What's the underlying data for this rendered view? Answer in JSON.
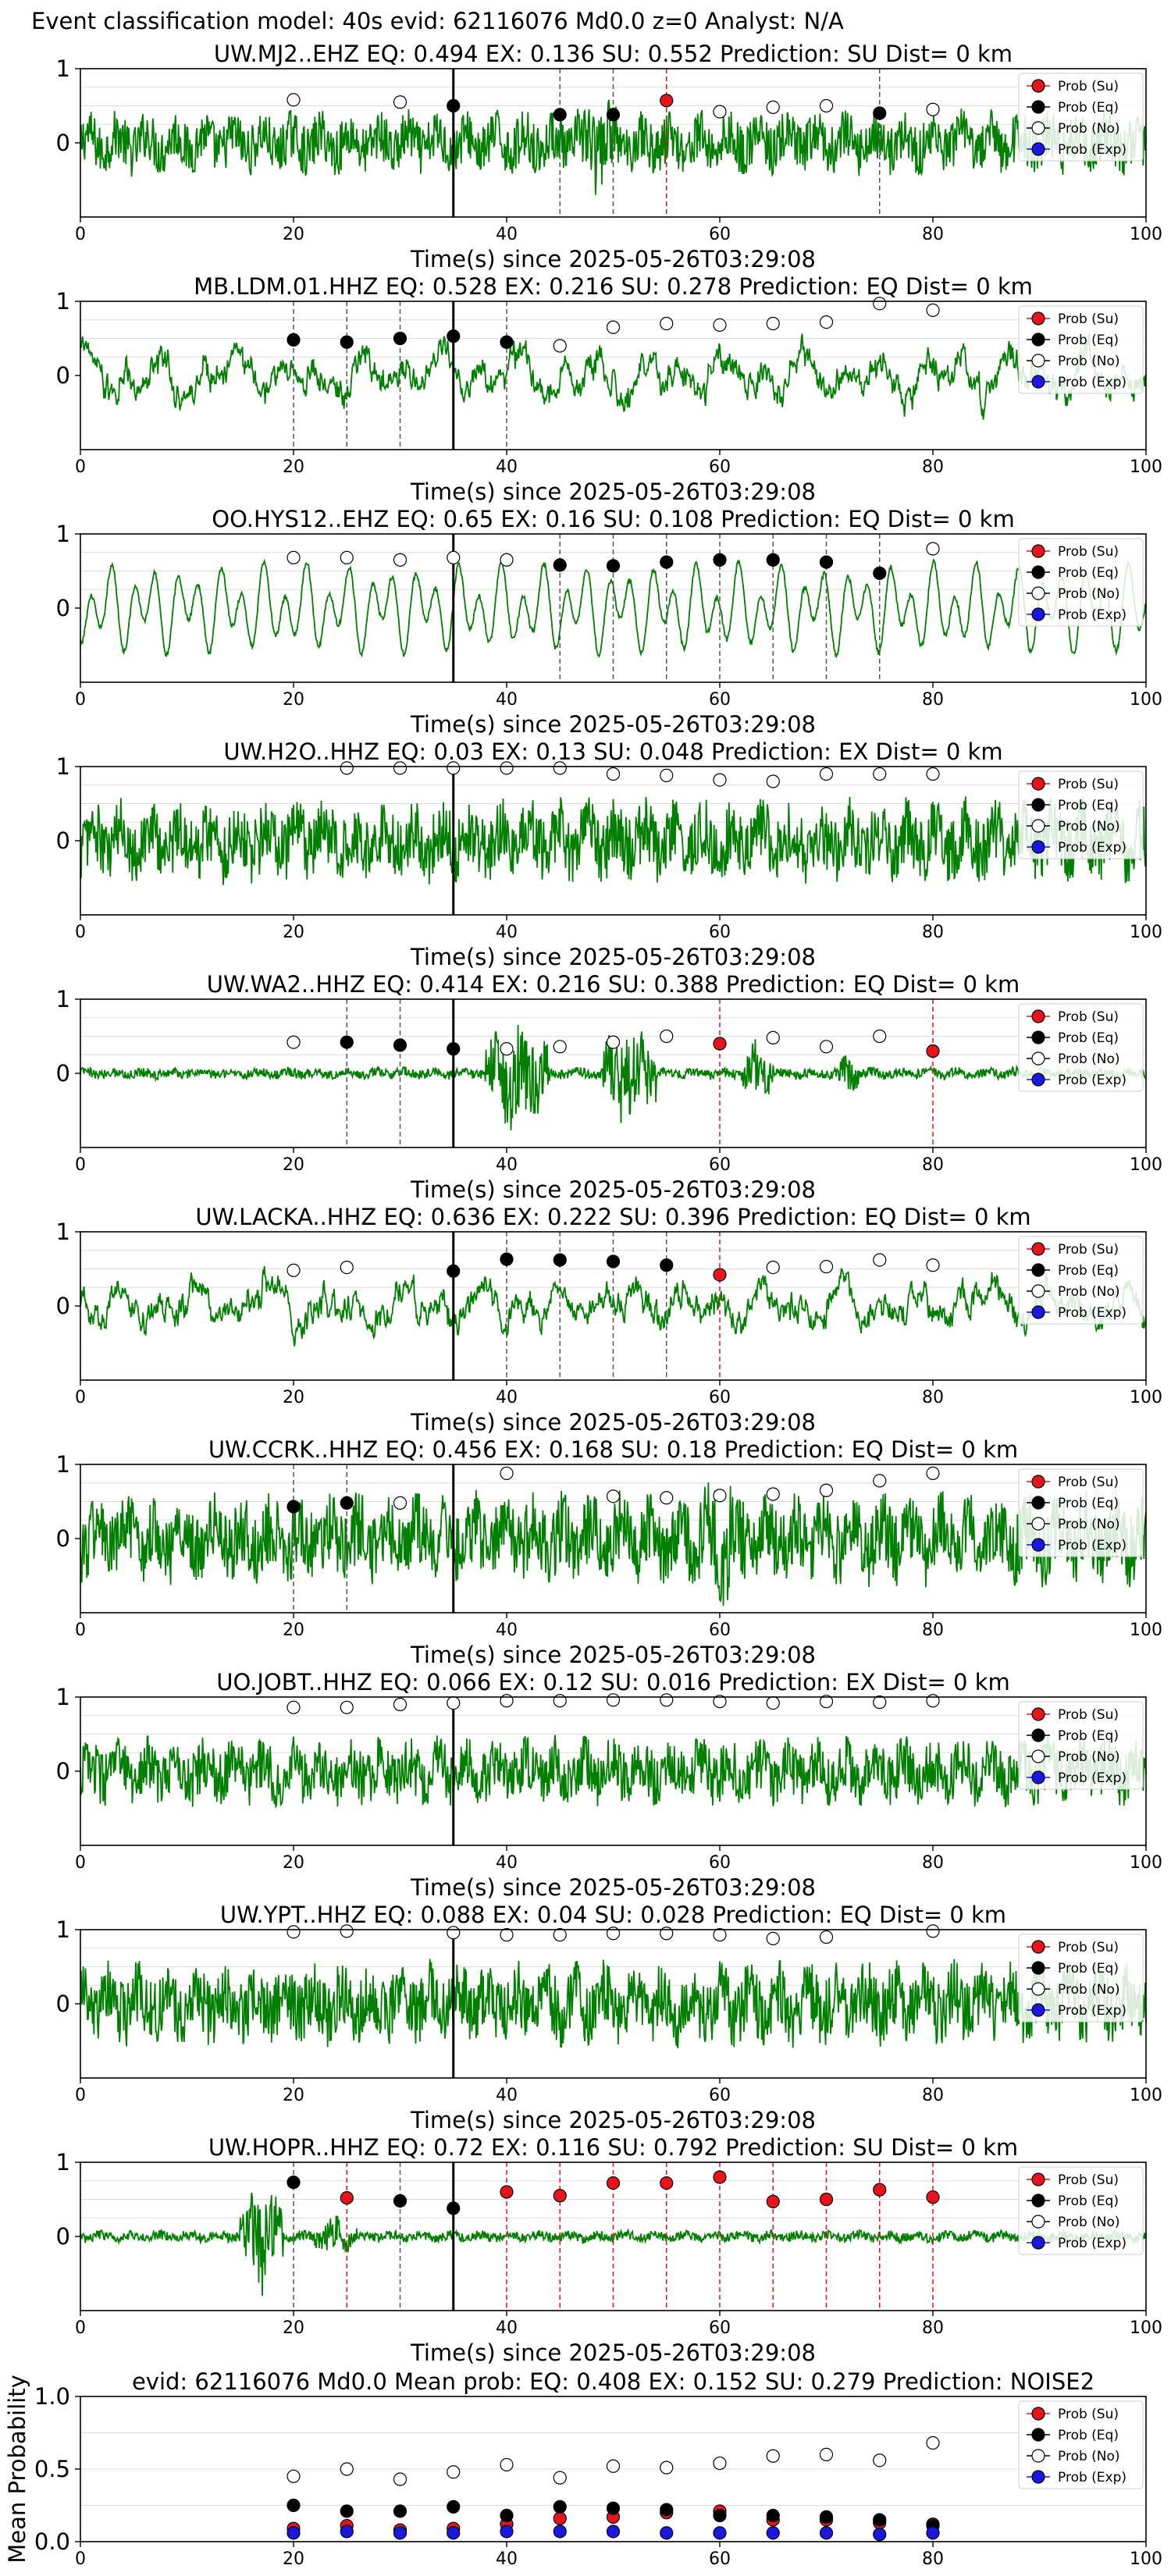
{
  "suptitle": "Event classification model: 40s evid: 62116076 Md0.0 z=0 Analyst: N/A",
  "colors": {
    "waveform": "#007f00",
    "su": "#e8141b",
    "eq": "#000000",
    "no": "#ffffff",
    "exp": "#1a18e0",
    "pick_line": "#000000",
    "grid": "#dddddd"
  },
  "legend": [
    {
      "label": "Prob (Su)",
      "key": "su"
    },
    {
      "label": "Prob (Eq)",
      "key": "eq"
    },
    {
      "label": "Prob (No)",
      "key": "no"
    },
    {
      "label": "Prob (Exp)",
      "key": "exp"
    }
  ],
  "chart_data": [
    {
      "type": "line",
      "title": "UW.MJ2..EHZ   EQ: 0.494  EX: 0.136  SU: 0.552   Prediction: SU    Dist= 0 km",
      "xlabel": "Time(s) since 2025-05-26T03:29:08",
      "xlim": [
        0,
        100
      ],
      "ylim": [
        -1,
        1
      ],
      "xticks": [
        0,
        20,
        40,
        60,
        80,
        100
      ],
      "yticks": [
        0,
        1
      ],
      "pick_time": 35,
      "waveform": {
        "amplitude": 0.42,
        "style": "noisy",
        "bursts": [
          [
            45,
            52,
            0.7
          ]
        ]
      },
      "markers": [
        {
          "x": 20,
          "y": 0.58,
          "cls": "no"
        },
        {
          "x": 30,
          "y": 0.55,
          "cls": "no"
        },
        {
          "x": 35,
          "y": 0.5,
          "cls": "eq"
        },
        {
          "x": 45,
          "y": 0.38,
          "cls": "eq"
        },
        {
          "x": 50,
          "y": 0.38,
          "cls": "eq"
        },
        {
          "x": 55,
          "y": 0.57,
          "cls": "su"
        },
        {
          "x": 60,
          "y": 0.42,
          "cls": "no"
        },
        {
          "x": 65,
          "y": 0.48,
          "cls": "no"
        },
        {
          "x": 70,
          "y": 0.5,
          "cls": "no"
        },
        {
          "x": 75,
          "y": 0.4,
          "cls": "eq"
        },
        {
          "x": 80,
          "y": 0.45,
          "cls": "no"
        }
      ]
    },
    {
      "type": "line",
      "title": "MB.LDM.01.HHZ   EQ: 0.528  EX: 0.216  SU: 0.278   Prediction: EQ    Dist= 0 km",
      "xlabel": "Time(s) since 2025-05-26T03:29:08",
      "xlim": [
        0,
        100
      ],
      "ylim": [
        -1,
        1
      ],
      "xticks": [
        0,
        20,
        40,
        60,
        80,
        100
      ],
      "yticks": [
        0,
        1
      ],
      "pick_time": 35,
      "waveform": {
        "amplitude": 0.6,
        "style": "lowfreq",
        "bursts": []
      },
      "markers": [
        {
          "x": 20,
          "y": 0.48,
          "cls": "eq"
        },
        {
          "x": 25,
          "y": 0.45,
          "cls": "eq"
        },
        {
          "x": 30,
          "y": 0.5,
          "cls": "eq"
        },
        {
          "x": 35,
          "y": 0.53,
          "cls": "eq"
        },
        {
          "x": 40,
          "y": 0.45,
          "cls": "eq"
        },
        {
          "x": 45,
          "y": 0.4,
          "cls": "no"
        },
        {
          "x": 50,
          "y": 0.65,
          "cls": "no"
        },
        {
          "x": 55,
          "y": 0.7,
          "cls": "no"
        },
        {
          "x": 60,
          "y": 0.68,
          "cls": "no"
        },
        {
          "x": 65,
          "y": 0.7,
          "cls": "no"
        },
        {
          "x": 70,
          "y": 0.72,
          "cls": "no"
        },
        {
          "x": 75,
          "y": 0.97,
          "cls": "no"
        },
        {
          "x": 80,
          "y": 0.88,
          "cls": "no"
        }
      ]
    },
    {
      "type": "line",
      "title": "OO.HYS12..EHZ   EQ: 0.65  EX: 0.16  SU: 0.108   Prediction: EQ    Dist= 0 km",
      "xlabel": "Time(s) since 2025-05-26T03:29:08",
      "xlim": [
        0,
        100
      ],
      "ylim": [
        -1,
        1
      ],
      "xticks": [
        0,
        20,
        40,
        60,
        80,
        100
      ],
      "yticks": [
        0,
        1
      ],
      "pick_time": 35,
      "waveform": {
        "amplitude": 0.7,
        "style": "smooth",
        "bursts": []
      },
      "markers": [
        {
          "x": 20,
          "y": 0.68,
          "cls": "no"
        },
        {
          "x": 25,
          "y": 0.68,
          "cls": "no"
        },
        {
          "x": 30,
          "y": 0.65,
          "cls": "no"
        },
        {
          "x": 35,
          "y": 0.68,
          "cls": "no"
        },
        {
          "x": 40,
          "y": 0.65,
          "cls": "no"
        },
        {
          "x": 45,
          "y": 0.58,
          "cls": "eq"
        },
        {
          "x": 50,
          "y": 0.57,
          "cls": "eq"
        },
        {
          "x": 55,
          "y": 0.62,
          "cls": "eq"
        },
        {
          "x": 60,
          "y": 0.65,
          "cls": "eq"
        },
        {
          "x": 65,
          "y": 0.65,
          "cls": "eq"
        },
        {
          "x": 70,
          "y": 0.62,
          "cls": "eq"
        },
        {
          "x": 75,
          "y": 0.47,
          "cls": "eq"
        },
        {
          "x": 80,
          "y": 0.8,
          "cls": "no"
        }
      ]
    },
    {
      "type": "line",
      "title": "UW.H2O..HHZ   EQ: 0.03  EX: 0.13  SU: 0.048   Prediction: EX    Dist= 0 km",
      "xlabel": "Time(s) since 2025-05-26T03:29:08",
      "xlim": [
        0,
        100
      ],
      "ylim": [
        -1,
        1
      ],
      "xticks": [
        0,
        20,
        40,
        60,
        80,
        100
      ],
      "yticks": [
        0,
        1
      ],
      "pick_time": 35,
      "waveform": {
        "amplitude": 0.55,
        "style": "noisy",
        "bursts": []
      },
      "markers": [
        {
          "x": 25,
          "y": 0.98,
          "cls": "no"
        },
        {
          "x": 30,
          "y": 0.98,
          "cls": "no"
        },
        {
          "x": 35,
          "y": 0.98,
          "cls": "no"
        },
        {
          "x": 40,
          "y": 0.98,
          "cls": "no"
        },
        {
          "x": 45,
          "y": 0.98,
          "cls": "no"
        },
        {
          "x": 50,
          "y": 0.9,
          "cls": "no"
        },
        {
          "x": 55,
          "y": 0.88,
          "cls": "no"
        },
        {
          "x": 60,
          "y": 0.82,
          "cls": "no"
        },
        {
          "x": 65,
          "y": 0.8,
          "cls": "no"
        },
        {
          "x": 70,
          "y": 0.9,
          "cls": "no"
        },
        {
          "x": 75,
          "y": 0.9,
          "cls": "no"
        },
        {
          "x": 80,
          "y": 0.9,
          "cls": "no"
        }
      ]
    },
    {
      "type": "line",
      "title": "UW.WA2..HHZ   EQ: 0.414  EX: 0.216  SU: 0.388   Prediction: EQ    Dist= 0 km",
      "xlabel": "Time(s) since 2025-05-26T03:29:08",
      "xlim": [
        0,
        100
      ],
      "ylim": [
        -1,
        1
      ],
      "xticks": [
        0,
        20,
        40,
        60,
        80,
        100
      ],
      "yticks": [
        0,
        1
      ],
      "pick_time": 35,
      "waveform": {
        "amplitude": 0.08,
        "style": "noisy",
        "bursts": [
          [
            38,
            44,
            0.9
          ],
          [
            49,
            54,
            0.8
          ],
          [
            62,
            65,
            0.45
          ],
          [
            71,
            73,
            0.35
          ]
        ]
      },
      "markers": [
        {
          "x": 20,
          "y": 0.42,
          "cls": "no"
        },
        {
          "x": 25,
          "y": 0.42,
          "cls": "eq"
        },
        {
          "x": 30,
          "y": 0.38,
          "cls": "eq"
        },
        {
          "x": 35,
          "y": 0.33,
          "cls": "eq"
        },
        {
          "x": 40,
          "y": 0.33,
          "cls": "no"
        },
        {
          "x": 45,
          "y": 0.36,
          "cls": "no"
        },
        {
          "x": 50,
          "y": 0.42,
          "cls": "no"
        },
        {
          "x": 55,
          "y": 0.5,
          "cls": "no"
        },
        {
          "x": 60,
          "y": 0.4,
          "cls": "su"
        },
        {
          "x": 65,
          "y": 0.48,
          "cls": "no"
        },
        {
          "x": 70,
          "y": 0.36,
          "cls": "no"
        },
        {
          "x": 75,
          "y": 0.5,
          "cls": "no"
        },
        {
          "x": 80,
          "y": 0.3,
          "cls": "su"
        }
      ]
    },
    {
      "type": "line",
      "title": "UW.LACKA..HHZ   EQ: 0.636  EX: 0.222  SU: 0.396   Prediction: EQ    Dist= 0 km",
      "xlabel": "Time(s) since 2025-05-26T03:29:08",
      "xlim": [
        0,
        100
      ],
      "ylim": [
        -1,
        1
      ],
      "xticks": [
        0,
        20,
        40,
        60,
        80,
        100
      ],
      "yticks": [
        0,
        1
      ],
      "pick_time": 35,
      "waveform": {
        "amplitude": 0.55,
        "style": "lowfreq",
        "bursts": [
          [
            16,
            18,
            0.9
          ]
        ]
      },
      "markers": [
        {
          "x": 20,
          "y": 0.48,
          "cls": "no"
        },
        {
          "x": 25,
          "y": 0.52,
          "cls": "no"
        },
        {
          "x": 35,
          "y": 0.47,
          "cls": "eq"
        },
        {
          "x": 40,
          "y": 0.63,
          "cls": "eq"
        },
        {
          "x": 45,
          "y": 0.62,
          "cls": "eq"
        },
        {
          "x": 50,
          "y": 0.6,
          "cls": "eq"
        },
        {
          "x": 55,
          "y": 0.55,
          "cls": "eq"
        },
        {
          "x": 60,
          "y": 0.42,
          "cls": "su"
        },
        {
          "x": 65,
          "y": 0.52,
          "cls": "no"
        },
        {
          "x": 70,
          "y": 0.53,
          "cls": "no"
        },
        {
          "x": 75,
          "y": 0.62,
          "cls": "no"
        },
        {
          "x": 80,
          "y": 0.55,
          "cls": "no"
        }
      ]
    },
    {
      "type": "line",
      "title": "UW.CCRK..HHZ   EQ: 0.456  EX: 0.168  SU: 0.18   Prediction: EQ    Dist= 0 km",
      "xlabel": "Time(s) since 2025-05-26T03:29:08",
      "xlim": [
        0,
        100
      ],
      "ylim": [
        -1,
        1
      ],
      "xticks": [
        0,
        20,
        40,
        60,
        80,
        100
      ],
      "yticks": [
        0,
        1
      ],
      "pick_time": 35,
      "waveform": {
        "amplitude": 0.6,
        "style": "noisy",
        "bursts": [
          [
            57,
            64,
            0.95
          ]
        ]
      },
      "markers": [
        {
          "x": 20,
          "y": 0.43,
          "cls": "eq"
        },
        {
          "x": 25,
          "y": 0.48,
          "cls": "eq"
        },
        {
          "x": 30,
          "y": 0.48,
          "cls": "no"
        },
        {
          "x": 40,
          "y": 0.88,
          "cls": "no"
        },
        {
          "x": 50,
          "y": 0.57,
          "cls": "no"
        },
        {
          "x": 55,
          "y": 0.55,
          "cls": "no"
        },
        {
          "x": 60,
          "y": 0.58,
          "cls": "no"
        },
        {
          "x": 65,
          "y": 0.6,
          "cls": "no"
        },
        {
          "x": 70,
          "y": 0.65,
          "cls": "no"
        },
        {
          "x": 75,
          "y": 0.78,
          "cls": "no"
        },
        {
          "x": 80,
          "y": 0.88,
          "cls": "no"
        }
      ]
    },
    {
      "type": "line",
      "title": "UO.JOBT..HHZ   EQ: 0.066  EX: 0.12  SU: 0.016   Prediction: EX    Dist= 0 km",
      "xlabel": "Time(s) since 2025-05-26T03:29:08",
      "xlim": [
        0,
        100
      ],
      "ylim": [
        -1,
        1
      ],
      "xticks": [
        0,
        20,
        40,
        60,
        80,
        100
      ],
      "yticks": [
        0,
        1
      ],
      "pick_time": 35,
      "waveform": {
        "amplitude": 0.45,
        "style": "noisy",
        "bursts": []
      },
      "markers": [
        {
          "x": 20,
          "y": 0.86,
          "cls": "no"
        },
        {
          "x": 25,
          "y": 0.86,
          "cls": "no"
        },
        {
          "x": 30,
          "y": 0.9,
          "cls": "no"
        },
        {
          "x": 35,
          "y": 0.92,
          "cls": "no"
        },
        {
          "x": 40,
          "y": 0.95,
          "cls": "no"
        },
        {
          "x": 45,
          "y": 0.95,
          "cls": "no"
        },
        {
          "x": 50,
          "y": 0.96,
          "cls": "no"
        },
        {
          "x": 55,
          "y": 0.96,
          "cls": "no"
        },
        {
          "x": 60,
          "y": 0.94,
          "cls": "no"
        },
        {
          "x": 65,
          "y": 0.92,
          "cls": "no"
        },
        {
          "x": 70,
          "y": 0.94,
          "cls": "no"
        },
        {
          "x": 75,
          "y": 0.93,
          "cls": "no"
        },
        {
          "x": 80,
          "y": 0.95,
          "cls": "no"
        }
      ]
    },
    {
      "type": "line",
      "title": "UW.YPT..HHZ   EQ: 0.088  EX: 0.04  SU: 0.028   Prediction: EQ    Dist= 0 km",
      "xlabel": "Time(s) since 2025-05-26T03:29:08",
      "xlim": [
        0,
        100
      ],
      "ylim": [
        -1,
        1
      ],
      "xticks": [
        0,
        20,
        40,
        60,
        80,
        100
      ],
      "yticks": [
        0,
        1
      ],
      "pick_time": 35,
      "waveform": {
        "amplitude": 0.55,
        "style": "noisy",
        "bursts": []
      },
      "markers": [
        {
          "x": 20,
          "y": 0.97,
          "cls": "no"
        },
        {
          "x": 25,
          "y": 0.98,
          "cls": "no"
        },
        {
          "x": 35,
          "y": 0.96,
          "cls": "no"
        },
        {
          "x": 40,
          "y": 0.93,
          "cls": "no"
        },
        {
          "x": 45,
          "y": 0.93,
          "cls": "no"
        },
        {
          "x": 50,
          "y": 0.95,
          "cls": "no"
        },
        {
          "x": 55,
          "y": 0.95,
          "cls": "no"
        },
        {
          "x": 60,
          "y": 0.93,
          "cls": "no"
        },
        {
          "x": 65,
          "y": 0.88,
          "cls": "no"
        },
        {
          "x": 70,
          "y": 0.9,
          "cls": "no"
        },
        {
          "x": 80,
          "y": 0.98,
          "cls": "no"
        }
      ]
    },
    {
      "type": "line",
      "title": "UW.HOPR..HHZ   EQ: 0.72  EX: 0.116  SU: 0.792   Prediction: SU    Dist= 0 km",
      "xlabel": "Time(s) since 2025-05-26T03:29:08",
      "xlim": [
        0,
        100
      ],
      "ylim": [
        -1,
        1
      ],
      "xticks": [
        0,
        20,
        40,
        60,
        80,
        100
      ],
      "yticks": [
        0,
        1
      ],
      "pick_time": 35,
      "waveform": {
        "amplitude": 0.08,
        "style": "noisy",
        "bursts": [
          [
            15,
            19,
            0.85
          ],
          [
            22,
            26,
            0.3
          ]
        ]
      },
      "markers": [
        {
          "x": 20,
          "y": 0.73,
          "cls": "eq"
        },
        {
          "x": 25,
          "y": 0.52,
          "cls": "su"
        },
        {
          "x": 30,
          "y": 0.48,
          "cls": "eq"
        },
        {
          "x": 35,
          "y": 0.38,
          "cls": "eq"
        },
        {
          "x": 40,
          "y": 0.6,
          "cls": "su"
        },
        {
          "x": 45,
          "y": 0.55,
          "cls": "su"
        },
        {
          "x": 50,
          "y": 0.72,
          "cls": "su"
        },
        {
          "x": 55,
          "y": 0.72,
          "cls": "su"
        },
        {
          "x": 60,
          "y": 0.8,
          "cls": "su"
        },
        {
          "x": 65,
          "y": 0.47,
          "cls": "su"
        },
        {
          "x": 70,
          "y": 0.5,
          "cls": "su"
        },
        {
          "x": 75,
          "y": 0.63,
          "cls": "su"
        },
        {
          "x": 80,
          "y": 0.53,
          "cls": "su"
        }
      ]
    },
    {
      "type": "scatter",
      "title": "evid: 62116076  Md0.0   Mean prob:   EQ: 0.408  EX: 0.152  SU: 0.279   Prediction: NOISE2",
      "xlabel": "",
      "ylabel": "Mean Probability",
      "xlim": [
        0,
        100
      ],
      "ylim": [
        0,
        1
      ],
      "xticks": [
        0,
        20,
        40,
        60,
        80,
        100
      ],
      "yticks": [
        0.0,
        0.5,
        1.0
      ],
      "ytick_labels": [
        "0.0",
        "0.5",
        "1.0"
      ],
      "x": [
        20,
        25,
        30,
        35,
        40,
        45,
        50,
        55,
        60,
        65,
        70,
        75,
        80
      ],
      "series": [
        {
          "name": "Prob (Su)",
          "key": "su",
          "values": [
            0.09,
            0.11,
            0.08,
            0.09,
            0.12,
            0.16,
            0.17,
            0.2,
            0.21,
            0.15,
            0.15,
            0.13,
            0.12
          ]
        },
        {
          "name": "Prob (Eq)",
          "key": "eq",
          "values": [
            0.25,
            0.21,
            0.21,
            0.24,
            0.18,
            0.24,
            0.23,
            0.22,
            0.18,
            0.18,
            0.17,
            0.15,
            0.11
          ]
        },
        {
          "name": "Prob (No)",
          "key": "no",
          "values": [
            0.45,
            0.5,
            0.43,
            0.48,
            0.53,
            0.44,
            0.52,
            0.51,
            0.54,
            0.59,
            0.6,
            0.56,
            0.68
          ]
        },
        {
          "name": "Prob (Exp)",
          "key": "exp",
          "values": [
            0.06,
            0.07,
            0.06,
            0.06,
            0.07,
            0.07,
            0.07,
            0.06,
            0.06,
            0.06,
            0.06,
            0.05,
            0.06
          ]
        }
      ]
    }
  ]
}
